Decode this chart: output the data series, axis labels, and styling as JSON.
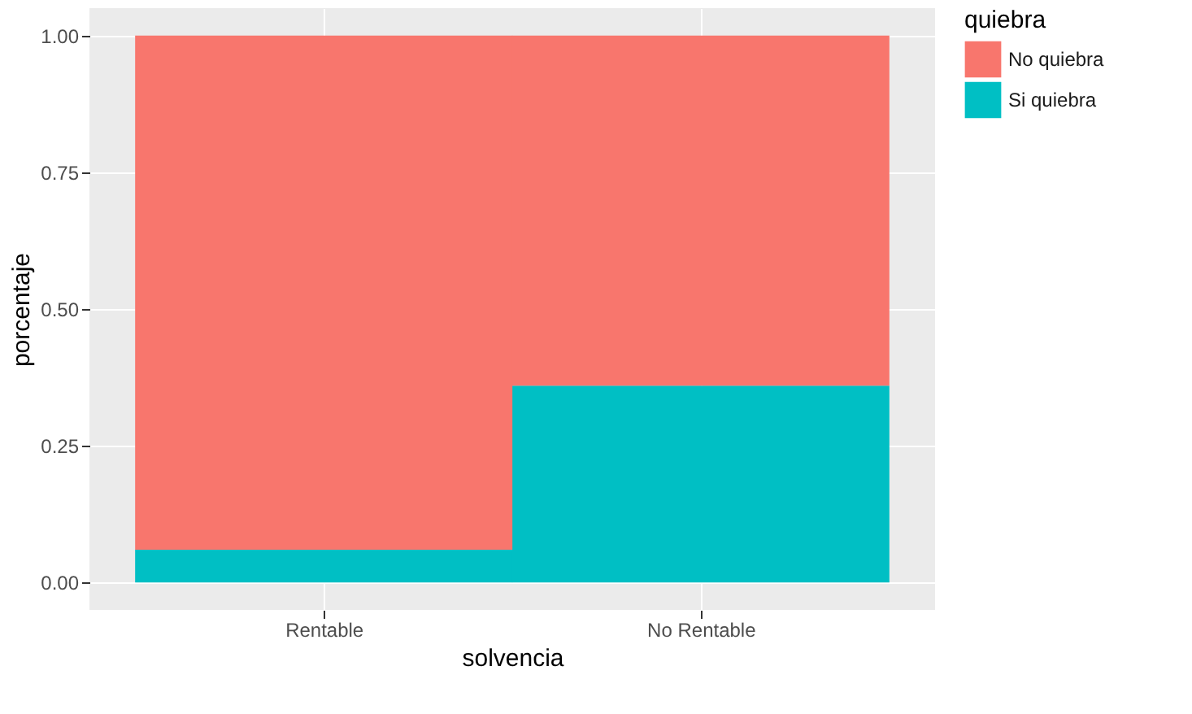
{
  "chart_data": {
    "type": "bar",
    "stacked": true,
    "xlabel": "solvencia",
    "ylabel": "porcentaje",
    "legend_title": "quiebra",
    "legend": "right",
    "grid": true,
    "categories": [
      "Rentable",
      "No Rentable"
    ],
    "series": [
      {
        "name": "Si quiebra",
        "color": "#00bfc4",
        "values": [
          0.06,
          0.36
        ]
      },
      {
        "name": "No quiebra",
        "color": "#f8766d",
        "values": [
          0.94,
          0.64
        ]
      }
    ],
    "ylim": [
      -0.05,
      1.05
    ],
    "yticks": [
      {
        "value": 0,
        "label": "0.00"
      },
      {
        "value": 0.25,
        "label": "0.25"
      },
      {
        "value": 0.5,
        "label": "0.50"
      },
      {
        "value": 0.75,
        "label": "0.75"
      },
      {
        "value": 1,
        "label": "1.00"
      }
    ]
  }
}
